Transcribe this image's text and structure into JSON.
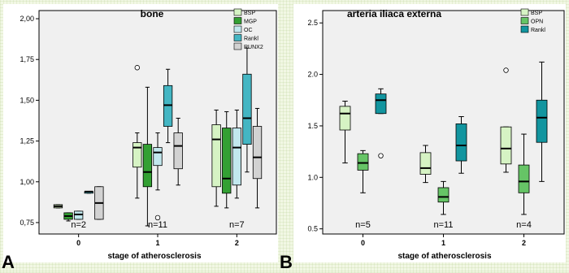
{
  "chart_data": [
    {
      "panel_label": "A",
      "type": "box",
      "title": "bone",
      "xlabel": "stage of atherosclerosis",
      "ylabel": "",
      "ylim": [
        0.68,
        2.05
      ],
      "yticks": [
        "0,75",
        "1,00",
        "1,25",
        "1,50",
        "1,75",
        "2,00"
      ],
      "ytick_values": [
        0.75,
        1.0,
        1.25,
        1.5,
        1.75,
        2.0
      ],
      "categories": [
        "0",
        "1",
        "2"
      ],
      "n_labels": [
        "n=2",
        "n=11",
        "n=7"
      ],
      "legend_position": "top-right",
      "series": [
        {
          "name": "BSP",
          "color": "#d6f3c4",
          "boxes": [
            {
              "min": 0.84,
              "q1": 0.84,
              "median": 0.85,
              "q3": 0.86,
              "max": 0.86,
              "outliers": []
            },
            {
              "min": 0.9,
              "q1": 1.09,
              "median": 1.21,
              "q3": 1.24,
              "max": 1.3,
              "outliers": [
                1.7
              ]
            },
            {
              "min": 0.85,
              "q1": 0.97,
              "median": 1.26,
              "q3": 1.35,
              "max": 1.44,
              "outliers": []
            }
          ]
        },
        {
          "name": "MGP",
          "color": "#33a033",
          "boxes": [
            {
              "min": 0.76,
              "q1": 0.77,
              "median": 0.79,
              "q3": 0.81,
              "max": 0.81,
              "outliers": []
            },
            {
              "min": 0.73,
              "q1": 0.97,
              "median": 1.06,
              "q3": 1.23,
              "max": 1.58,
              "outliers": []
            },
            {
              "min": 0.84,
              "q1": 0.93,
              "median": 1.02,
              "q3": 1.33,
              "max": 1.43,
              "outliers": []
            }
          ]
        },
        {
          "name": "OC",
          "color": "#c2e8ee",
          "boxes": [
            {
              "min": 0.77,
              "q1": 0.77,
              "median": 0.8,
              "q3": 0.82,
              "max": 0.82,
              "outliers": []
            },
            {
              "min": 0.95,
              "q1": 1.1,
              "median": 1.18,
              "q3": 1.21,
              "max": 1.3,
              "outliers": [
                0.78
              ]
            },
            {
              "min": 0.9,
              "q1": 0.98,
              "median": 1.21,
              "q3": 1.33,
              "max": 1.44,
              "outliers": []
            }
          ]
        },
        {
          "name": "Rankl",
          "color": "#44b6c3",
          "boxes": [
            {
              "min": 0.93,
              "q1": 0.93,
              "median": 0.94,
              "q3": 0.94,
              "max": 0.94,
              "outliers": []
            },
            {
              "min": 1.24,
              "q1": 1.34,
              "median": 1.47,
              "q3": 1.59,
              "max": 1.69,
              "outliers": []
            },
            {
              "min": 1.06,
              "q1": 1.23,
              "median": 1.39,
              "q3": 1.66,
              "max": 1.82,
              "outliers": []
            }
          ]
        },
        {
          "name": "RUNX2",
          "color": "#d2d2d2",
          "boxes": [
            {
              "min": 0.77,
              "q1": 0.77,
              "median": 0.87,
              "q3": 0.97,
              "max": 0.97,
              "outliers": []
            },
            {
              "min": 0.98,
              "q1": 1.08,
              "median": 1.22,
              "q3": 1.3,
              "max": 1.39,
              "outliers": []
            },
            {
              "min": 0.84,
              "q1": 1.02,
              "median": 1.15,
              "q3": 1.34,
              "max": 1.45,
              "outliers": []
            }
          ]
        }
      ]
    },
    {
      "panel_label": "B",
      "type": "box",
      "title": "arteria iliaca externa",
      "xlabel": "stage of atherosclerosis",
      "ylabel": "",
      "ylim": [
        0.45,
        2.62
      ],
      "yticks": [
        "0.5",
        "1.0",
        "1.5",
        "2.0",
        "2.5"
      ],
      "ytick_values": [
        0.5,
        1.0,
        1.5,
        2.0,
        2.5
      ],
      "categories": [
        "0",
        "1",
        "2"
      ],
      "n_labels": [
        "n=5",
        "n=11",
        "n=4"
      ],
      "legend_position": "top-right",
      "series": [
        {
          "name": "BSP",
          "color": "#d6f3c4",
          "boxes": [
            {
              "min": 1.14,
              "q1": 1.46,
              "median": 1.62,
              "q3": 1.69,
              "max": 1.74,
              "outliers": []
            },
            {
              "min": 0.95,
              "q1": 1.03,
              "median": 1.09,
              "q3": 1.24,
              "max": 1.31,
              "outliers": []
            },
            {
              "min": 1.05,
              "q1": 1.13,
              "median": 1.28,
              "q3": 1.49,
              "max": 1.49,
              "outliers": [
                2.04
              ]
            }
          ]
        },
        {
          "name": "OPN",
          "color": "#66c466",
          "boxes": [
            {
              "min": 0.85,
              "q1": 1.07,
              "median": 1.14,
              "q3": 1.23,
              "max": 1.26,
              "outliers": []
            },
            {
              "min": 0.64,
              "q1": 0.76,
              "median": 0.81,
              "q3": 0.9,
              "max": 0.96,
              "outliers": []
            },
            {
              "min": 0.64,
              "q1": 0.85,
              "median": 0.96,
              "q3": 1.12,
              "max": 1.42,
              "outliers": []
            }
          ]
        },
        {
          "name": "Rankl",
          "color": "#12959f",
          "boxes": [
            {
              "min": 1.62,
              "q1": 1.62,
              "median": 1.75,
              "q3": 1.81,
              "max": 1.86,
              "outliers": [
                1.21
              ]
            },
            {
              "min": 1.04,
              "q1": 1.16,
              "median": 1.31,
              "q3": 1.52,
              "max": 1.59,
              "outliers": []
            },
            {
              "min": 0.96,
              "q1": 1.34,
              "median": 1.58,
              "q3": 1.75,
              "max": 2.12,
              "outliers": []
            }
          ]
        }
      ]
    }
  ]
}
